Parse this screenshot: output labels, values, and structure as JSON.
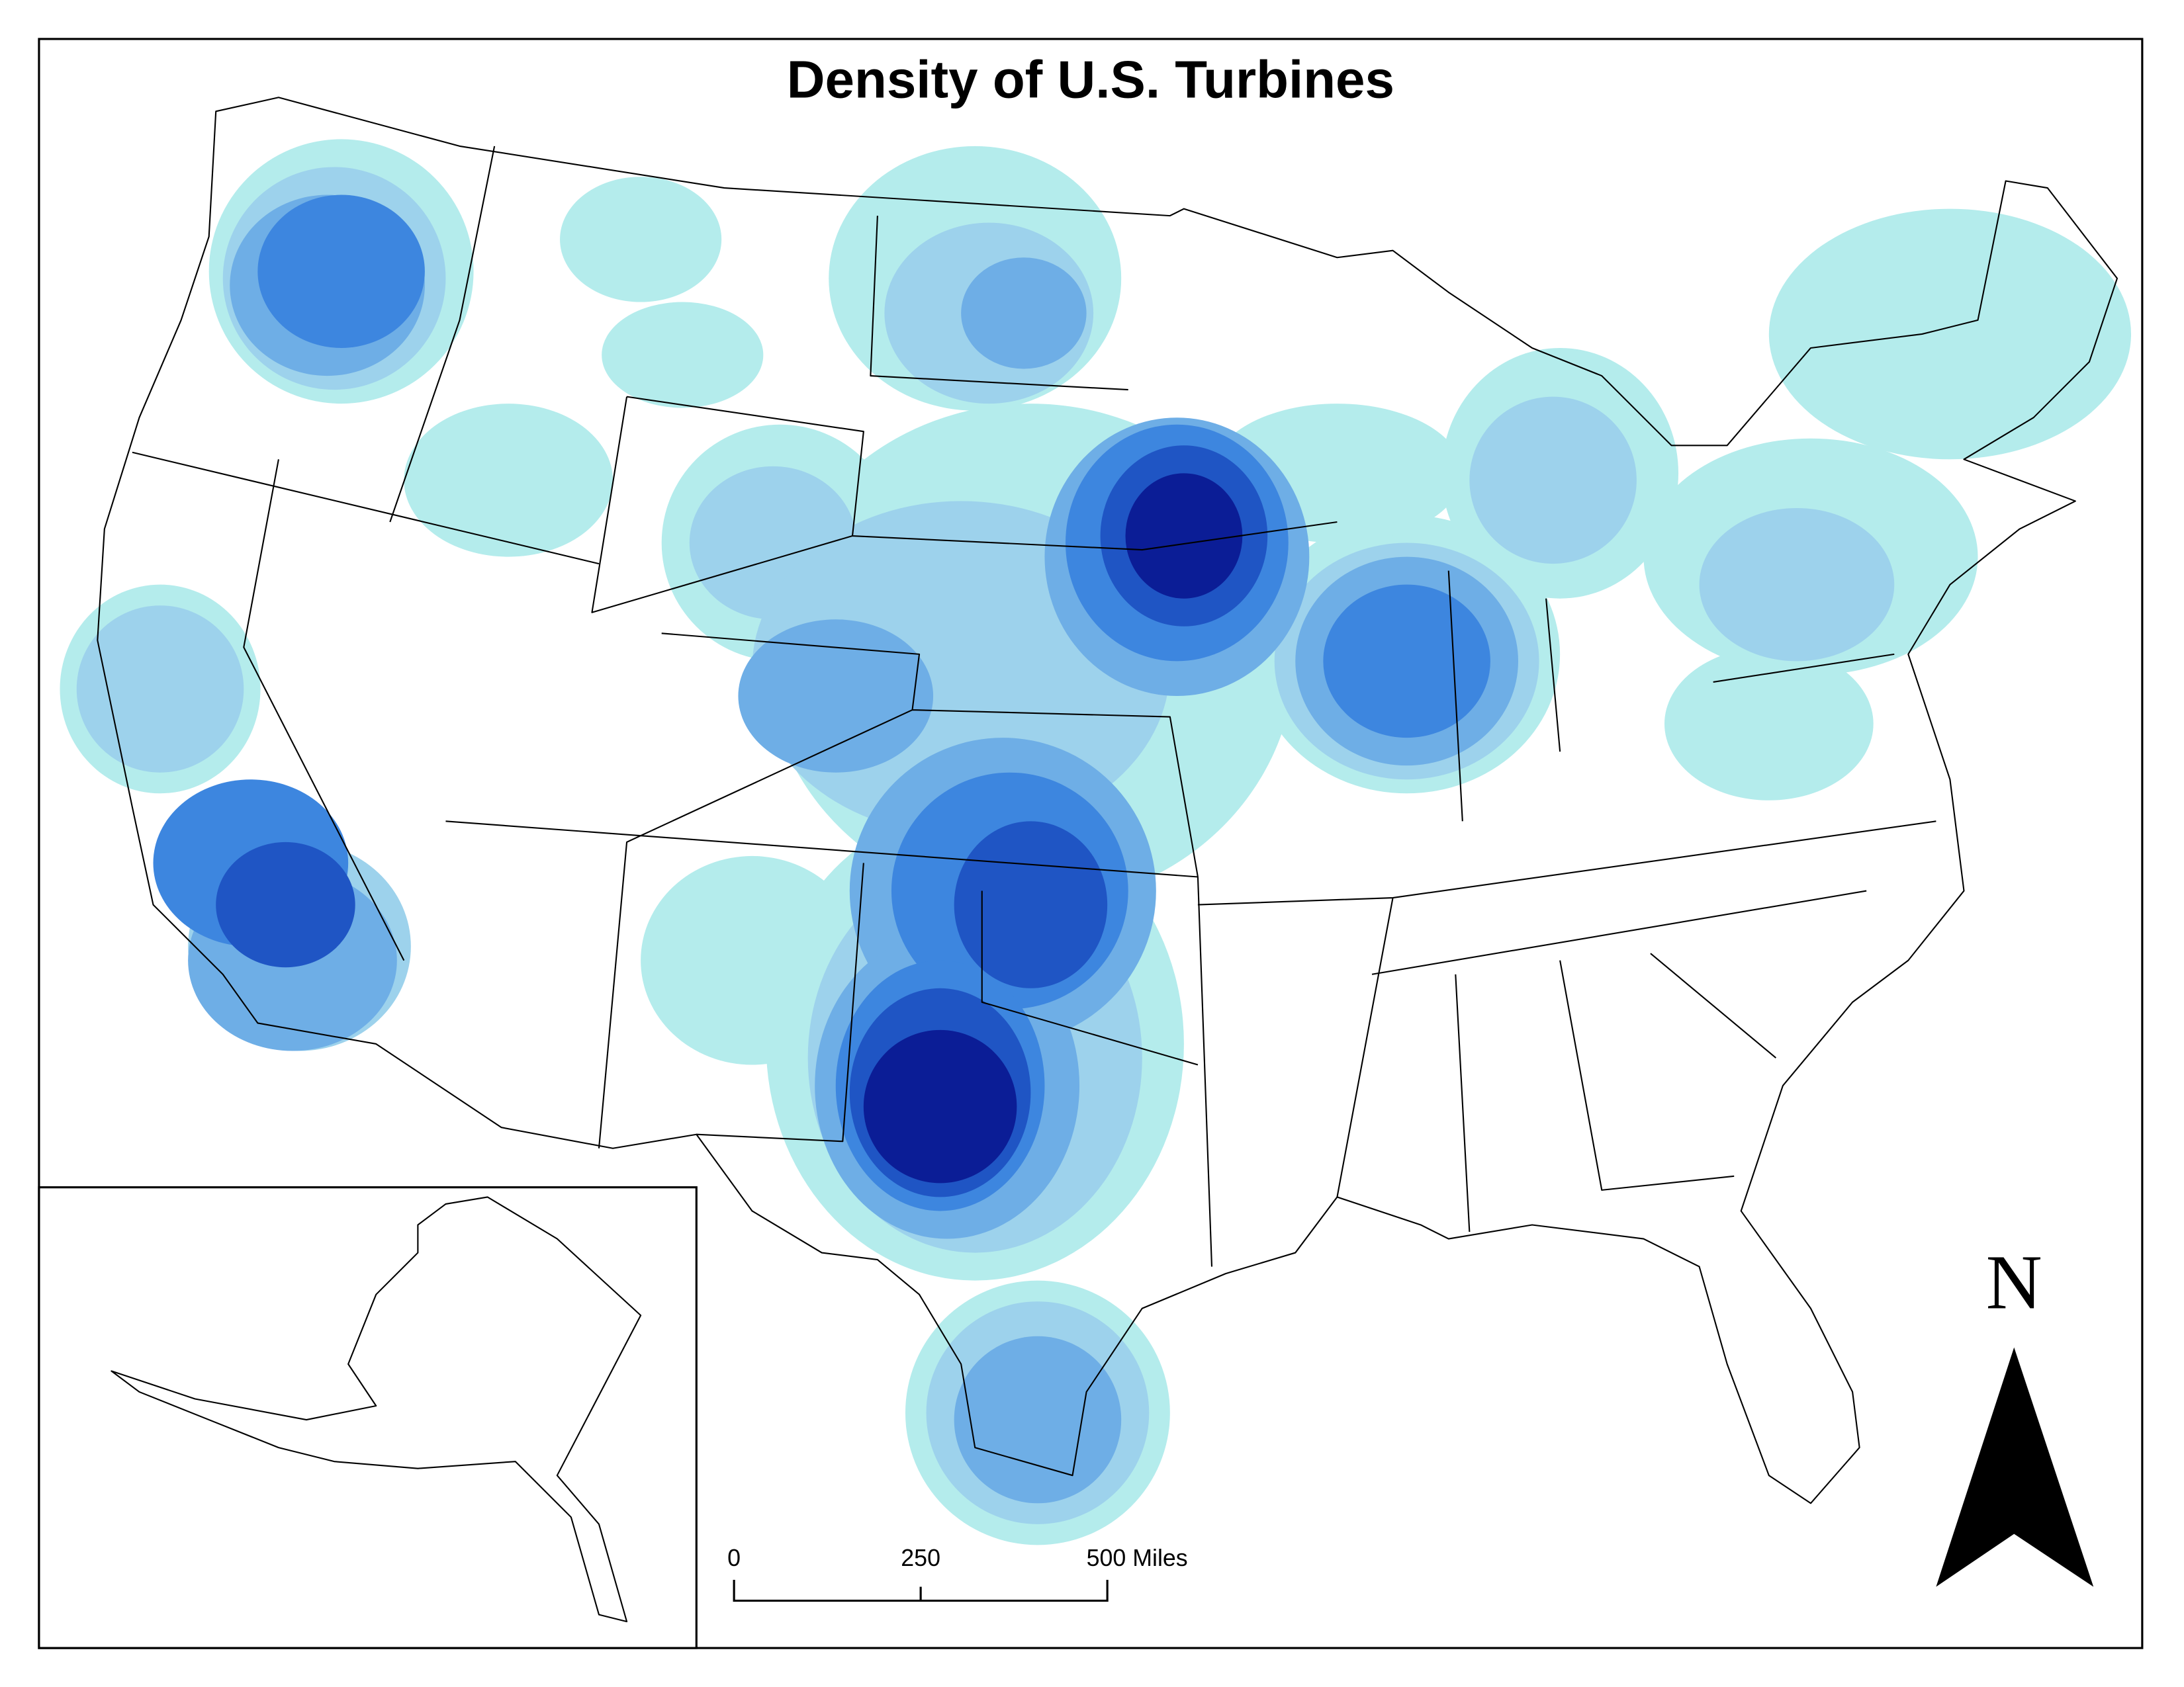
{
  "title": "Density of U.S. Turbines",
  "scale_bar": {
    "labels": [
      "0",
      "250",
      "500 Miles"
    ]
  },
  "north_arrow": {
    "label": "N"
  }
}
